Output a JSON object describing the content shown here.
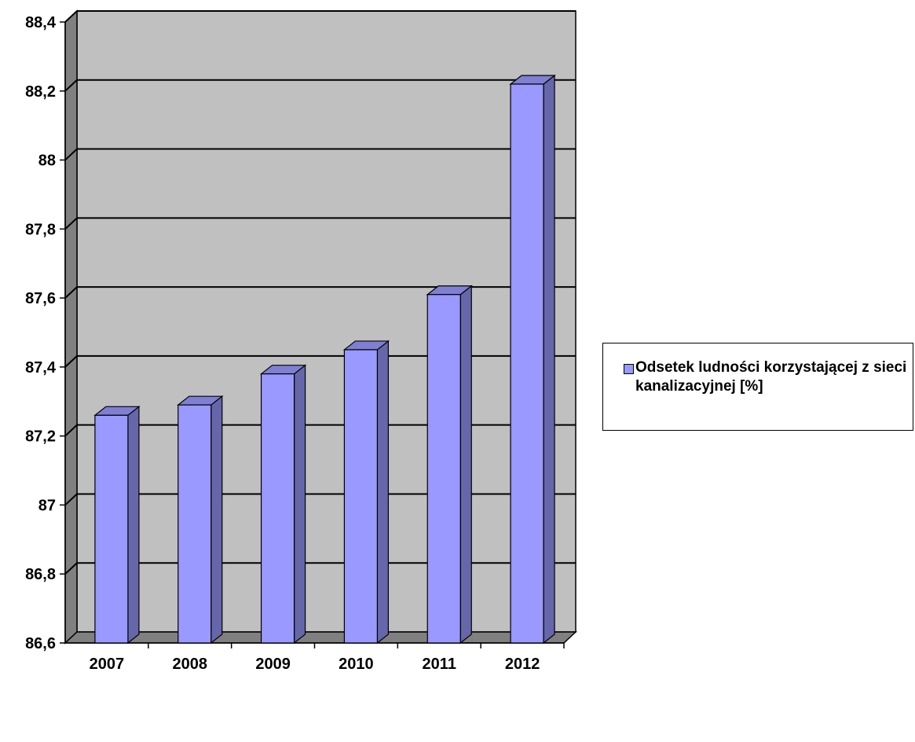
{
  "chart_data": {
    "type": "bar",
    "categories": [
      "2007",
      "2008",
      "2009",
      "2010",
      "2011",
      "2012"
    ],
    "series": [
      {
        "name": "Odsetek ludności korzystającej z sieci kanalizacyjnej [%]",
        "values": [
          87.26,
          87.29,
          87.38,
          87.45,
          87.61,
          88.22
        ],
        "color": "#9999ff"
      }
    ],
    "yticks": [
      "86,6",
      "86,8",
      "87",
      "87,2",
      "87,4",
      "87,6",
      "87,8",
      "88",
      "88,2",
      "88,4"
    ],
    "ylim": [
      86.6,
      88.4
    ],
    "grid": true,
    "legend_position": "right",
    "style": "3d",
    "colors": {
      "bar_front": "#9999ff",
      "bar_side": "#6666aa",
      "bar_top": "#7f7fd4",
      "wall": "#c0c0c0",
      "side_wall": "#808080",
      "floor": "#808080"
    }
  }
}
